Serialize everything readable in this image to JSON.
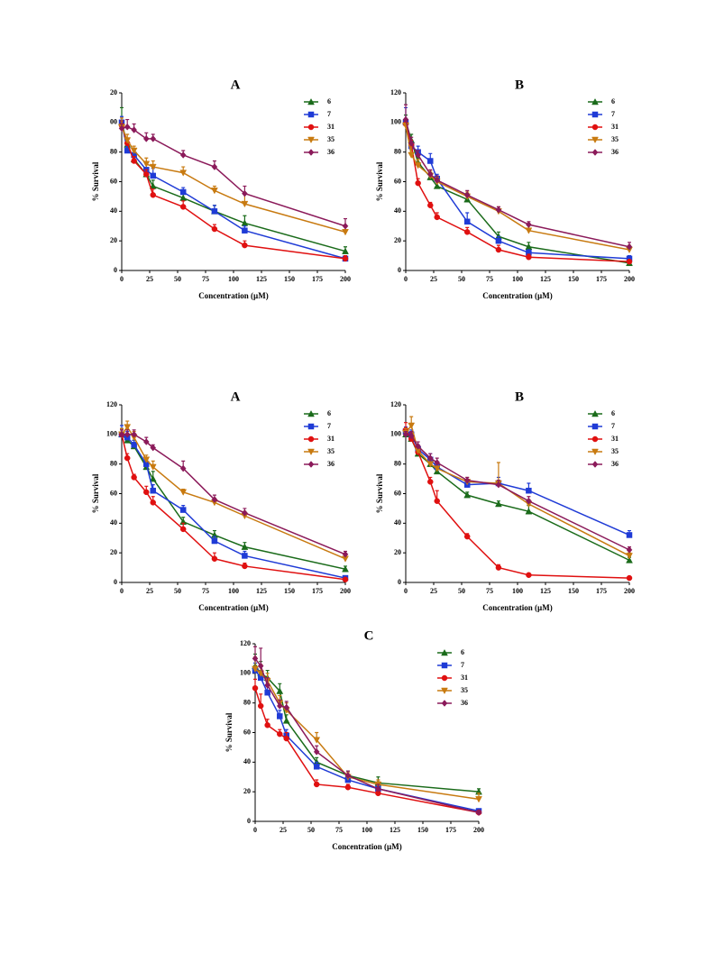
{
  "chart_data": [
    {
      "type": "line",
      "title": "A",
      "xlabel": "Concentration (µM)",
      "ylabel": "% Survival",
      "x": [
        0,
        5,
        11,
        22,
        28,
        55,
        83,
        110,
        200
      ],
      "xlim": [
        0,
        200
      ],
      "xticks": [
        0,
        25,
        50,
        75,
        100,
        125,
        150,
        175,
        200
      ],
      "ylim": [
        0,
        120
      ],
      "yticks": [
        0,
        20,
        40,
        60,
        80,
        {
          "value": 100,
          "label": "00"
        },
        {
          "value": 120,
          "label": "20"
        }
      ],
      "series": [
        {
          "name": "6",
          "color": "#1a6b1a",
          "marker": "triangle-up",
          "values": [
            100,
            85,
            75,
            65,
            57,
            49,
            40,
            32,
            13
          ],
          "errors": [
            10,
            4,
            3,
            3,
            4,
            3,
            4,
            5,
            3
          ]
        },
        {
          "name": "7",
          "color": "#1f3bd6",
          "marker": "square",
          "values": [
            100,
            81,
            78,
            68,
            64,
            53,
            40,
            27,
            8
          ],
          "errors": [
            4,
            3,
            3,
            4,
            5,
            3,
            4,
            3,
            2
          ]
        },
        {
          "name": "31",
          "color": "#e01010",
          "marker": "circle",
          "values": [
            98,
            86,
            74,
            65,
            51,
            43,
            28,
            17,
            8
          ],
          "errors": [
            3,
            3,
            3,
            3,
            4,
            4,
            3,
            3,
            2
          ]
        },
        {
          "name": "35",
          "color": "#c87a10",
          "marker": "triangle-down",
          "values": [
            97,
            88,
            81,
            72,
            70,
            66,
            54,
            45,
            26
          ],
          "errors": [
            6,
            4,
            3,
            4,
            4,
            4,
            3,
            7,
            4
          ]
        },
        {
          "name": "36",
          "color": "#8b1a5a",
          "marker": "diamond",
          "values": [
            96,
            97,
            95,
            89,
            89,
            78,
            70,
            52,
            30
          ],
          "errors": [
            3,
            5,
            4,
            4,
            3,
            3,
            4,
            5,
            5
          ]
        }
      ]
    },
    {
      "type": "line",
      "title": "B",
      "xlabel": "Concentration (µM)",
      "ylabel": "% Survival",
      "x": [
        0,
        5,
        11,
        22,
        28,
        55,
        83,
        110,
        200
      ],
      "xlim": [
        0,
        200
      ],
      "xticks": [
        0,
        25,
        50,
        75,
        100,
        125,
        150,
        175,
        200
      ],
      "ylim": [
        0,
        120
      ],
      "yticks": [
        0,
        20,
        40,
        60,
        80,
        100,
        120
      ],
      "series": [
        {
          "name": "6",
          "color": "#1a6b1a",
          "marker": "triangle-up",
          "values": [
            101,
            88,
            73,
            63,
            57,
            48,
            23,
            16,
            5
          ],
          "errors": [
            4,
            4,
            3,
            3,
            4,
            4,
            3,
            3,
            1
          ]
        },
        {
          "name": "7",
          "color": "#1f3bd6",
          "marker": "square",
          "values": [
            100,
            84,
            80,
            74,
            62,
            33,
            20,
            12,
            8
          ],
          "errors": [
            10,
            3,
            4,
            5,
            3,
            6,
            3,
            2,
            2
          ]
        },
        {
          "name": "31",
          "color": "#e01010",
          "marker": "circle",
          "values": [
            99,
            85,
            59,
            44,
            36,
            26,
            14,
            9,
            6
          ],
          "errors": [
            3,
            3,
            3,
            2,
            3,
            3,
            3,
            2,
            1
          ]
        },
        {
          "name": "35",
          "color": "#c87a10",
          "marker": "triangle-down",
          "values": [
            98,
            78,
            71,
            64,
            60,
            50,
            40,
            27,
            14
          ],
          "errors": [
            4,
            8,
            4,
            3,
            3,
            3,
            3,
            4,
            3
          ]
        },
        {
          "name": "36",
          "color": "#8b1a5a",
          "marker": "diamond",
          "values": [
            102,
            86,
            78,
            65,
            61,
            51,
            41,
            31,
            16
          ],
          "errors": [
            10,
            4,
            3,
            3,
            3,
            3,
            2,
            2,
            3
          ]
        }
      ]
    },
    {
      "type": "line",
      "title": "A",
      "xlabel": "Concentration (µM)",
      "ylabel": "% Survival",
      "x": [
        0,
        5,
        11,
        22,
        28,
        55,
        83,
        110,
        200
      ],
      "xlim": [
        0,
        200
      ],
      "xticks": [
        0,
        25,
        50,
        75,
        100,
        125,
        150,
        175,
        200
      ],
      "ylim": [
        0,
        120
      ],
      "yticks": [
        0,
        20,
        40,
        60,
        80,
        100,
        120
      ],
      "series": [
        {
          "name": "6",
          "color": "#1a6b1a",
          "marker": "triangle-up",
          "values": [
            100,
            96,
            92,
            78,
            70,
            41,
            32,
            24,
            9
          ],
          "errors": [
            4,
            4,
            4,
            5,
            5,
            3,
            3,
            3,
            2
          ]
        },
        {
          "name": "7",
          "color": "#1f3bd6",
          "marker": "square",
          "values": [
            100,
            98,
            93,
            80,
            62,
            49,
            28,
            18,
            3
          ],
          "errors": [
            6,
            4,
            3,
            3,
            4,
            3,
            3,
            3,
            1
          ]
        },
        {
          "name": "31",
          "color": "#e01010",
          "marker": "circle",
          "values": [
            100,
            84,
            71,
            61,
            54,
            36,
            16,
            11,
            2
          ],
          "errors": [
            3,
            3,
            2,
            4,
            4,
            4,
            4,
            2,
            1
          ]
        },
        {
          "name": "35",
          "color": "#c87a10",
          "marker": "triangle-down",
          "values": [
            100,
            105,
            98,
            83,
            78,
            61,
            54,
            45,
            16
          ],
          "errors": [
            4,
            4,
            4,
            3,
            4,
            2,
            3,
            3,
            2
          ]
        },
        {
          "name": "36",
          "color": "#8b1a5a",
          "marker": "diamond",
          "values": [
            100,
            100,
            100,
            95,
            91,
            77,
            56,
            47,
            19
          ],
          "errors": [
            3,
            3,
            3,
            3,
            2,
            5,
            3,
            3,
            2
          ]
        }
      ]
    },
    {
      "type": "line",
      "title": "B",
      "xlabel": "Concentration (µM)",
      "ylabel": "% Survival",
      "x": [
        0,
        5,
        11,
        22,
        28,
        55,
        83,
        110,
        200
      ],
      "xlim": [
        0,
        200
      ],
      "xticks": [
        0,
        25,
        50,
        75,
        100,
        125,
        150,
        175,
        200
      ],
      "ylim": [
        0,
        120
      ],
      "yticks": [
        0,
        20,
        40,
        60,
        80,
        100,
        120
      ],
      "series": [
        {
          "name": "6",
          "color": "#1a6b1a",
          "marker": "triangle-up",
          "values": [
            100,
            97,
            87,
            80,
            75,
            59,
            53,
            48,
            15
          ],
          "errors": [
            3,
            3,
            3,
            3,
            4,
            2,
            2,
            4,
            2
          ]
        },
        {
          "name": "7",
          "color": "#1f3bd6",
          "marker": "square",
          "values": [
            102,
            100,
            90,
            83,
            78,
            66,
            67,
            62,
            32
          ],
          "errors": [
            3,
            3,
            3,
            4,
            3,
            3,
            4,
            5,
            3
          ]
        },
        {
          "name": "31",
          "color": "#e01010",
          "marker": "circle",
          "values": [
            103,
            97,
            88,
            68,
            55,
            31,
            10,
            5,
            3
          ],
          "errors": [
            5,
            4,
            3,
            3,
            7,
            2,
            2,
            1,
            1
          ]
        },
        {
          "name": "35",
          "color": "#c87a10",
          "marker": "triangle-down",
          "values": [
            101,
            106,
            89,
            80,
            77,
            68,
            67,
            53,
            18
          ],
          "errors": [
            3,
            6,
            3,
            3,
            3,
            3,
            14,
            3,
            2
          ]
        },
        {
          "name": "36",
          "color": "#8b1a5a",
          "marker": "diamond",
          "values": [
            100,
            99,
            92,
            84,
            81,
            69,
            66,
            55,
            22
          ],
          "errors": [
            2,
            3,
            3,
            3,
            3,
            2,
            3,
            3,
            2
          ]
        }
      ]
    },
    {
      "type": "line",
      "title": "C",
      "xlabel": "Concentration (µM)",
      "ylabel": "% Survival",
      "x": [
        0,
        5,
        11,
        22,
        28,
        55,
        83,
        110,
        200
      ],
      "xlim": [
        0,
        200
      ],
      "xticks": [
        0,
        25,
        50,
        75,
        100,
        125,
        150,
        175,
        200
      ],
      "ylim": [
        0,
        120
      ],
      "yticks": [
        0,
        20,
        40,
        60,
        80,
        100,
        120
      ],
      "series": [
        {
          "name": "6",
          "color": "#1a6b1a",
          "marker": "triangle-up",
          "values": [
            105,
            100,
            97,
            88,
            68,
            40,
            31,
            26,
            20
          ],
          "errors": [
            8,
            8,
            5,
            5,
            4,
            3,
            3,
            4,
            2
          ]
        },
        {
          "name": "7",
          "color": "#1f3bd6",
          "marker": "square",
          "values": [
            102,
            97,
            87,
            71,
            58,
            37,
            28,
            22,
            7
          ],
          "errors": [
            5,
            5,
            6,
            4,
            4,
            3,
            2,
            2,
            1
          ]
        },
        {
          "name": "31",
          "color": "#e01010",
          "marker": "circle",
          "values": [
            90,
            78,
            65,
            59,
            56,
            25,
            23,
            19,
            6
          ],
          "errors": [
            6,
            8,
            4,
            3,
            4,
            3,
            2,
            2,
            1
          ]
        },
        {
          "name": "35",
          "color": "#c87a10",
          "marker": "triangle-down",
          "values": [
            103,
            100,
            95,
            80,
            75,
            55,
            30,
            25,
            15
          ],
          "errors": [
            8,
            6,
            5,
            5,
            5,
            5,
            3,
            3,
            4
          ]
        },
        {
          "name": "36",
          "color": "#8b1a5a",
          "marker": "diamond",
          "values": [
            110,
            105,
            92,
            78,
            77,
            47,
            31,
            22,
            6
          ],
          "errors": [
            8,
            12,
            5,
            4,
            4,
            4,
            3,
            3,
            1
          ]
        }
      ]
    }
  ]
}
